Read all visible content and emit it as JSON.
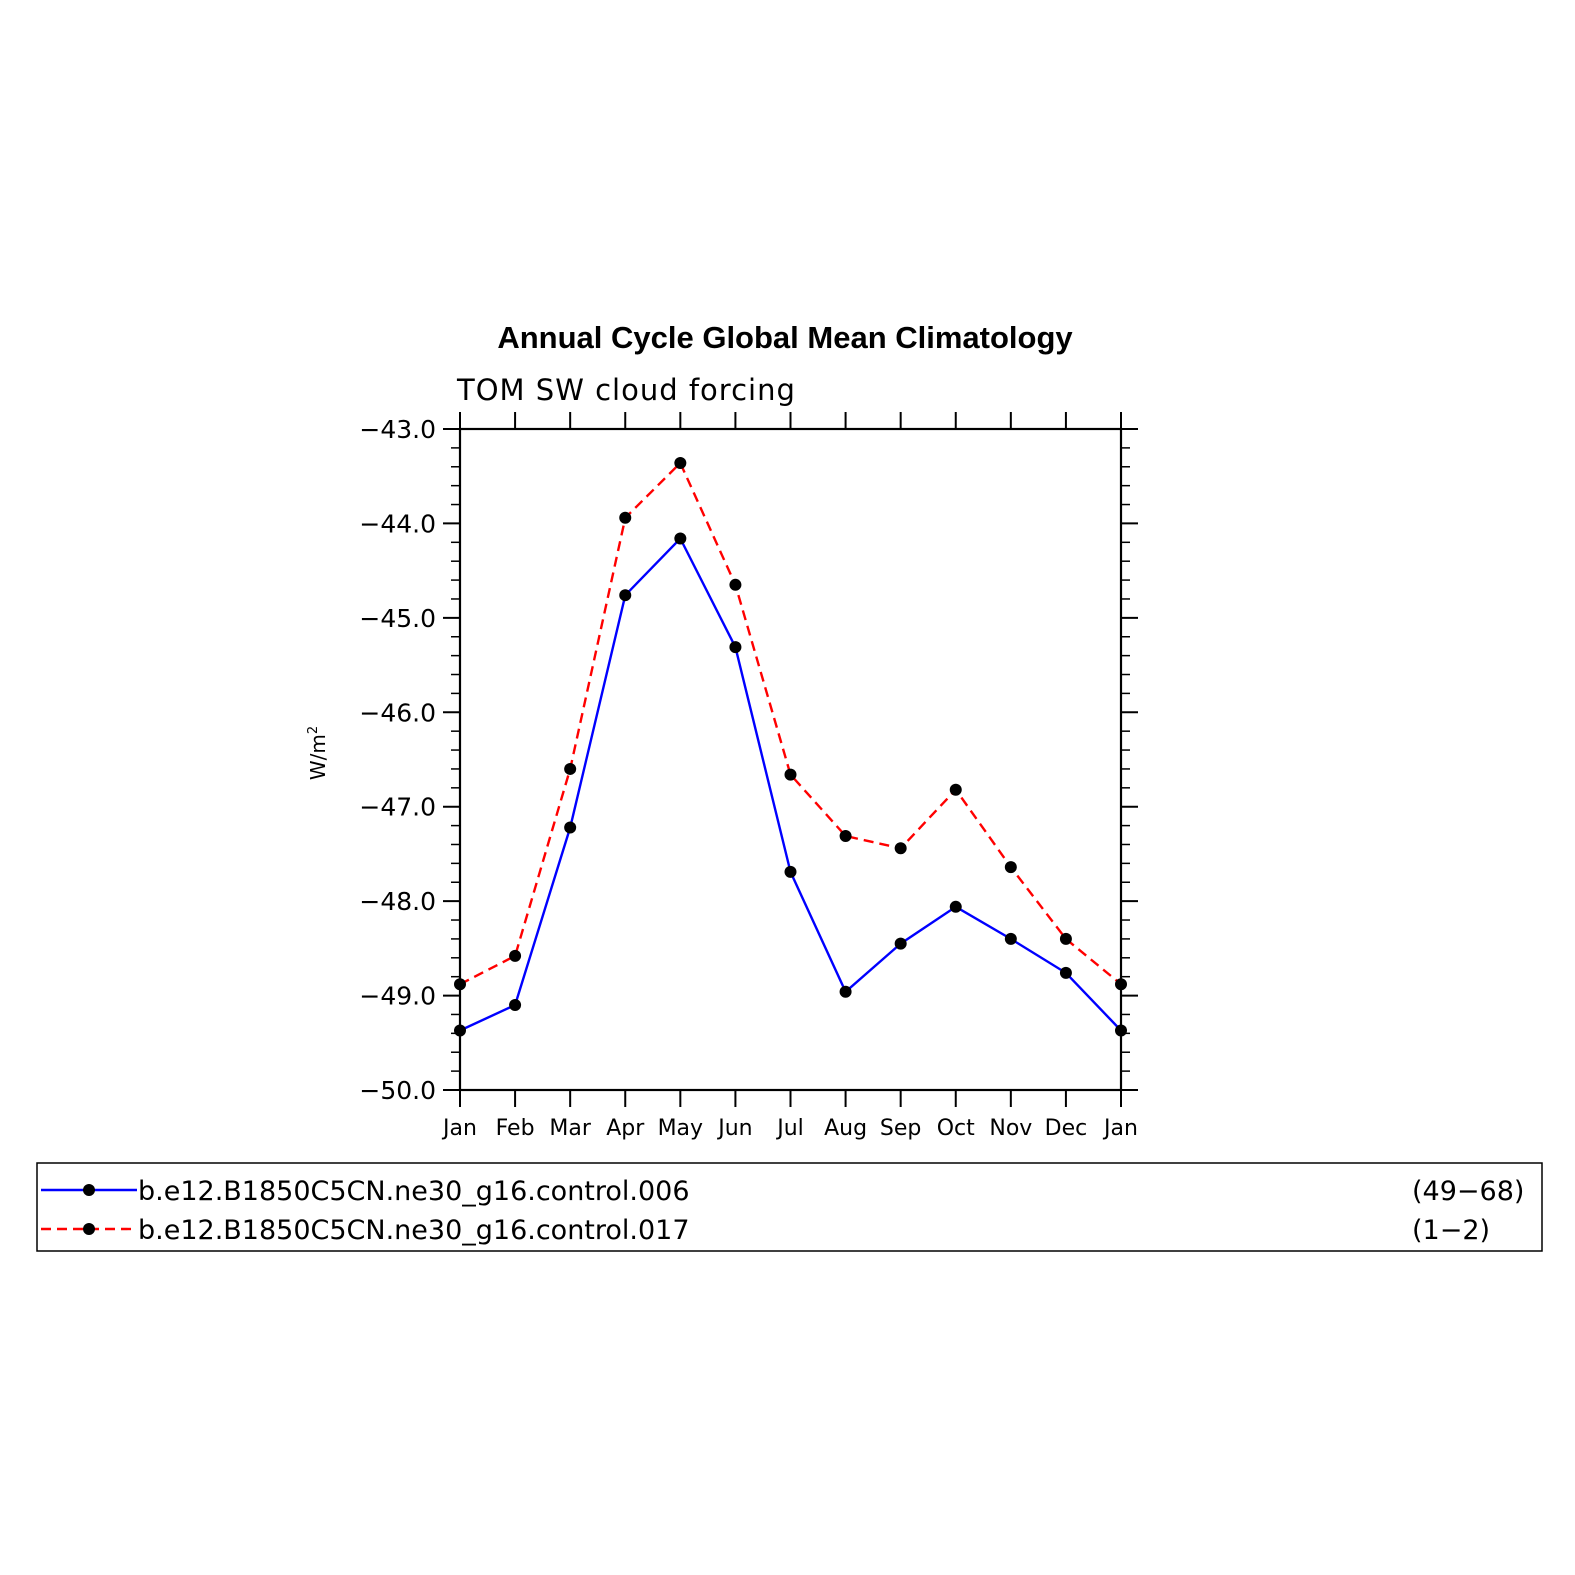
{
  "chart_data": {
    "type": "line",
    "title": "Annual Cycle Global Mean Climatology",
    "subtitle": "TOM SW cloud forcing",
    "ylabel": "W/m",
    "ylabel_sup": "2",
    "xlabel": "",
    "ylim": [
      -50.0,
      -43.0
    ],
    "yticks": [
      "−43.0",
      "−44.0",
      "−45.0",
      "−46.0",
      "−47.0",
      "−48.0",
      "−49.0",
      "−50.0"
    ],
    "ytick_values": [
      -43,
      -44,
      -45,
      -46,
      -47,
      -48,
      -49,
      -50
    ],
    "categories": [
      "Jan",
      "Feb",
      "Mar",
      "Apr",
      "May",
      "Jun",
      "Jul",
      "Aug",
      "Sep",
      "Oct",
      "Nov",
      "Dec",
      "Jan"
    ],
    "grid": false,
    "legend_position": "bottom",
    "series": [
      {
        "name": "b.e12.B1850C5CN.ne30_g16.control.006",
        "years": "(49−68)",
        "color": "#0000ff",
        "style": "solid",
        "values": [
          -49.37,
          -49.1,
          -47.22,
          -44.76,
          -44.16,
          -45.31,
          -47.69,
          -48.96,
          -48.45,
          -48.06,
          -48.4,
          -48.76,
          -49.37
        ]
      },
      {
        "name": "b.e12.B1850C5CN.ne30_g16.control.017",
        "years": "(1−2)",
        "color": "#ff0000",
        "style": "dashed",
        "values": [
          -48.88,
          -48.58,
          -46.6,
          -43.94,
          -43.36,
          -44.65,
          -46.66,
          -47.31,
          -47.44,
          -46.82,
          -47.64,
          -48.4,
          -48.88
        ]
      }
    ]
  }
}
